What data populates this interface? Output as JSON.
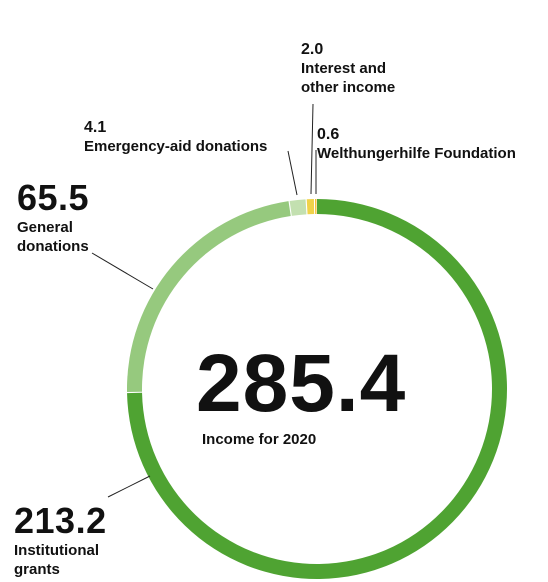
{
  "chart_data": {
    "type": "pie",
    "total": {
      "value": "285.4",
      "label": "Income for 2020"
    },
    "slices": [
      {
        "value_text": "213.2",
        "value": 213.2,
        "label": "Institutional grants",
        "label_lines": [
          "Institutional",
          "grants"
        ],
        "color": "#4fa332"
      },
      {
        "value_text": "65.5",
        "value": 65.5,
        "label": "General donations",
        "label_lines": [
          "General",
          "donations"
        ],
        "color": "#96c97e"
      },
      {
        "value_text": "4.1",
        "value": 4.1,
        "label": "Emergency-aid donations",
        "label_lines": [
          "Emergency-aid donations"
        ],
        "color": "#c3e0b0"
      },
      {
        "value_text": "2.0",
        "value": 2.0,
        "label": "Interest and other income",
        "label_lines": [
          "Interest and",
          "other income"
        ],
        "color": "#f0d24a"
      },
      {
        "value_text": "0.6",
        "value": 0.6,
        "label": "Welthungerhilfe Foundation",
        "label_lines": [
          "Welthungerhilfe Foundation"
        ],
        "color": "#f5b81c"
      }
    ]
  }
}
